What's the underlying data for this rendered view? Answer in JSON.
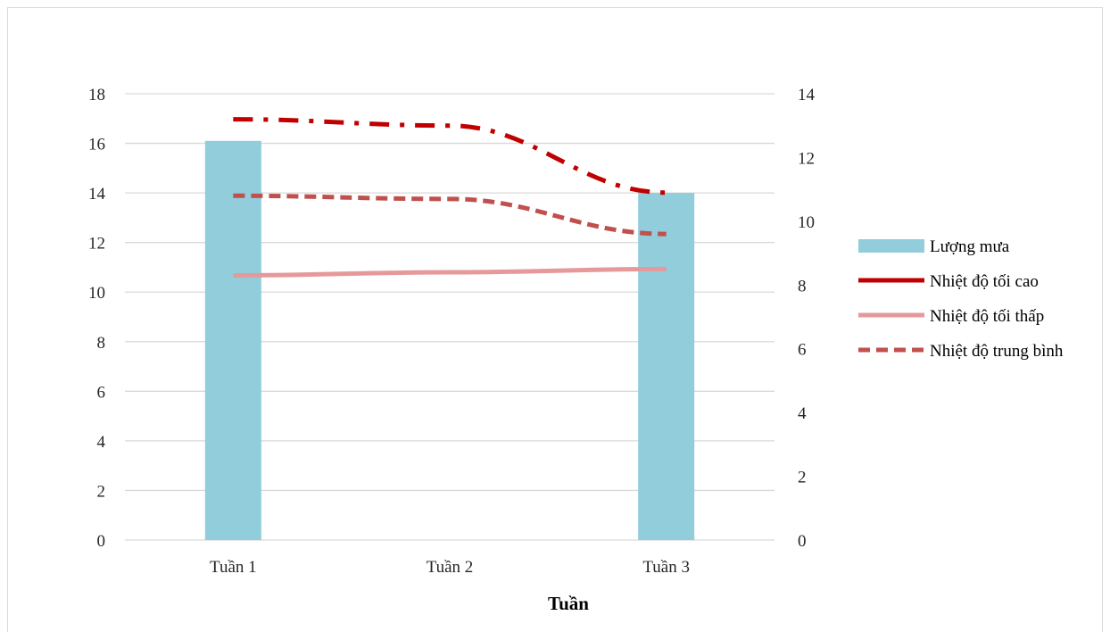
{
  "chart_data": {
    "type": "bar+line",
    "categories": [
      "Tuần 1",
      "Tuần 2",
      "Tuần 3"
    ],
    "xlabel": "Tuần",
    "ylim_left": [
      0,
      18
    ],
    "ylim_right": [
      0,
      14
    ],
    "yticks_left": [
      "0",
      "2",
      "4",
      "6",
      "8",
      "10",
      "12",
      "14",
      "16",
      "18"
    ],
    "yticks_right": [
      "0",
      "2",
      "4",
      "6",
      "8",
      "10",
      "12",
      "14"
    ],
    "grid": true,
    "legend_position": "right",
    "series": [
      {
        "name": "Lượng mưa",
        "type": "bar",
        "axis": "left",
        "color": "#92cddc",
        "values": [
          16.1,
          null,
          14.0
        ]
      },
      {
        "name": "Nhiệt độ tối cao",
        "type": "line",
        "axis": "right",
        "color": "#c00000",
        "style": "dash-dot",
        "values": [
          13.2,
          13.0,
          10.9
        ]
      },
      {
        "name": "Nhiệt độ tối thấp",
        "type": "line",
        "axis": "right",
        "color": "#e6999b",
        "style": "solid",
        "values": [
          8.3,
          8.4,
          8.5
        ]
      },
      {
        "name": "Nhiệt độ trung bình",
        "type": "line",
        "axis": "right",
        "color": "#c0504d",
        "style": "dashed",
        "values": [
          10.8,
          10.7,
          9.6
        ]
      }
    ]
  }
}
